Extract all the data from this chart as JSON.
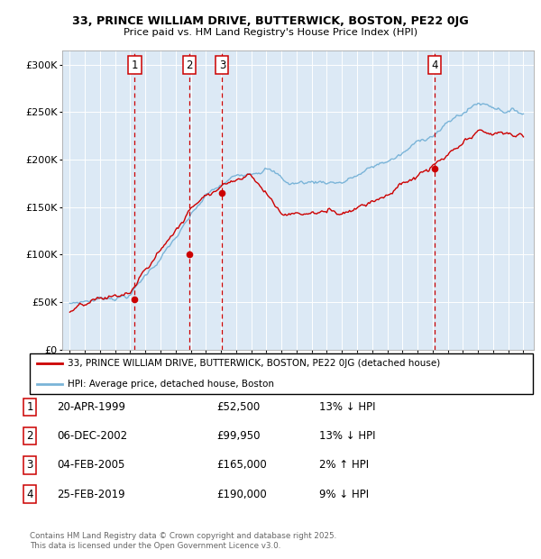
{
  "title1": "33, PRINCE WILLIAM DRIVE, BUTTERWICK, BOSTON, PE22 0JG",
  "title2": "Price paid vs. HM Land Registry's House Price Index (HPI)",
  "ytick_values": [
    0,
    50000,
    100000,
    150000,
    200000,
    250000,
    300000
  ],
  "ytick_labels": [
    "£0",
    "£50K",
    "£100K",
    "£150K",
    "£200K",
    "£250K",
    "£300K"
  ],
  "ylim": [
    0,
    315000
  ],
  "xlim_start": 1994.5,
  "xlim_end": 2025.7,
  "hpi_color": "#7ab4d8",
  "price_color": "#cc0000",
  "plot_bg": "#dce9f5",
  "grid_color": "#ffffff",
  "transactions": [
    {
      "num": 1,
      "year": 1999.3,
      "price": 52500
    },
    {
      "num": 2,
      "year": 2002.92,
      "price": 99950
    },
    {
      "num": 3,
      "year": 2005.08,
      "price": 165000
    },
    {
      "num": 4,
      "year": 2019.15,
      "price": 190000
    }
  ],
  "legend_line1": "33, PRINCE WILLIAM DRIVE, BUTTERWICK, BOSTON, PE22 0JG (detached house)",
  "legend_line2": "HPI: Average price, detached house, Boston",
  "table_rows": [
    {
      "num": "1",
      "date": "20-APR-1999",
      "price": "£52,500",
      "info": "13% ↓ HPI"
    },
    {
      "num": "2",
      "date": "06-DEC-2002",
      "price": "£99,950",
      "info": "13% ↓ HPI"
    },
    {
      "num": "3",
      "date": "04-FEB-2005",
      "price": "£165,000",
      "info": "2% ↑ HPI"
    },
    {
      "num": "4",
      "date": "25-FEB-2019",
      "price": "£190,000",
      "info": "9% ↓ HPI"
    }
  ],
  "footnote1": "Contains HM Land Registry data © Crown copyright and database right 2025.",
  "footnote2": "This data is licensed under the Open Government Licence v3.0."
}
